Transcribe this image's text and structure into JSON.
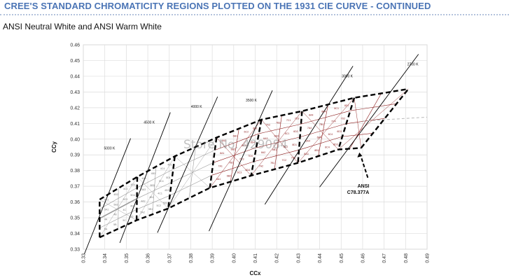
{
  "header": {
    "title": "CREE'S STANDARD CHROMATICITY REGIONS PLOTTED ON THE 1931 CIE CURVE - CONTINUED",
    "subtitle": "ANSI Neutral White and ANSI Warm White"
  },
  "watermark": "Store No. 429084",
  "colors": {
    "title": "#4a74b5",
    "neutral_bins": "#9a9a9a",
    "warm_bins": "#8b1a1a",
    "outline": "#000000"
  },
  "chart_data": {
    "type": "scatter",
    "title": "",
    "xlabel": "CCx",
    "ylabel": "CCy",
    "xlim": [
      0.33,
      0.49
    ],
    "ylim": [
      0.33,
      0.46
    ],
    "x_ticks": [
      "0.33",
      "0.34",
      "0.35",
      "0.36",
      "0.37",
      "0.38",
      "0.39",
      "0.40",
      "0.41",
      "0.42",
      "0.43",
      "0.44",
      "0.45",
      "0.46",
      "0.47",
      "0.48",
      "0.49"
    ],
    "y_ticks": [
      "0.33",
      "0.34",
      "0.35",
      "0.36",
      "0.37",
      "0.38",
      "0.39",
      "0.40",
      "0.41",
      "0.42",
      "0.43",
      "0.44",
      "0.45",
      "0.46"
    ],
    "grid": true,
    "ansi_regions": {
      "corners": [
        [
          0.3376,
          0.3616
        ],
        [
          0.3376,
          0.3375
        ],
        [
          0.4813,
          0.4319
        ],
        [
          0.4593,
          0.3944
        ]
      ],
      "lower_edge": [
        [
          0.3376,
          0.3375
        ],
        [
          0.3548,
          0.3484
        ],
        [
          0.3695,
          0.3559
        ],
        [
          0.3889,
          0.369
        ],
        [
          0.4081,
          0.3768
        ],
        [
          0.4299,
          0.3849
        ],
        [
          0.4487,
          0.3934
        ],
        [
          0.4593,
          0.3944
        ]
      ],
      "upper_edge": [
        [
          0.3376,
          0.3616
        ],
        [
          0.3551,
          0.376
        ],
        [
          0.3726,
          0.3891
        ],
        [
          0.392,
          0.401
        ],
        [
          0.4129,
          0.4124
        ],
        [
          0.4318,
          0.4178
        ],
        [
          0.4561,
          0.4263
        ],
        [
          0.4813,
          0.4319
        ]
      ],
      "separators": [
        [
          [
            0.3551,
            0.376
          ],
          [
            0.3548,
            0.3484
          ]
        ],
        [
          [
            0.3726,
            0.3891
          ],
          [
            0.3695,
            0.3559
          ]
        ],
        [
          [
            0.392,
            0.401
          ],
          [
            0.3889,
            0.369
          ]
        ],
        [
          [
            0.4129,
            0.4124
          ],
          [
            0.4081,
            0.3768
          ]
        ],
        [
          [
            0.4318,
            0.4178
          ],
          [
            0.4299,
            0.3849
          ]
        ],
        [
          [
            0.4561,
            0.4263
          ],
          [
            0.4487,
            0.3934
          ]
        ]
      ]
    },
    "isotherms": [
      {
        "label": "5000 K",
        "from": [
          0.3305,
          0.327
        ],
        "to": [
          0.352,
          0.4005
        ]
      },
      {
        "label": "4500 K",
        "from": [
          0.347,
          0.334
        ],
        "to": [
          0.3705,
          0.417
        ]
      },
      {
        "label": "4000 K",
        "from": [
          0.3645,
          0.3405
        ],
        "to": [
          0.3925,
          0.427
        ]
      },
      {
        "label": "3500 K",
        "from": [
          0.3885,
          0.3415
        ],
        "to": [
          0.418,
          0.431
        ]
      },
      {
        "label": "3000 K",
        "from": [
          0.4145,
          0.3585
        ],
        "to": [
          0.4555,
          0.4465
        ]
      },
      {
        "label": "2700 K",
        "from": [
          0.44,
          0.3695
        ],
        "to": [
          0.486,
          0.454
        ]
      }
    ],
    "planckian_segment": {
      "from": [
        0.46,
        0.4115
      ],
      "to": [
        0.49,
        0.414
      ]
    },
    "bin_labels_neutral": [
      "5A",
      "5B",
      "5C",
      "5D",
      "4A",
      "4B",
      "4C",
      "4D",
      "5A1",
      "5B2",
      "5C3",
      "5D4",
      "4A1",
      "4B2",
      "4C3",
      "4D4",
      "5A2",
      "5B1",
      "5C2",
      "5D3",
      "4A2",
      "4B1",
      "4C1",
      "4D2",
      "5A3",
      "5B3",
      "5C4",
      "5D1",
      "4A3",
      "4B3",
      "4C4",
      "4D1"
    ],
    "bin_labels_warm": [
      "6A1",
      "6B2",
      "6C3",
      "6D4",
      "7A1",
      "7B2",
      "7C3",
      "7D4",
      "8A1",
      "8B2",
      "8C3",
      "8D4",
      "6A2",
      "6B1",
      "6C2",
      "6D1",
      "7A2",
      "7B1",
      "7C2",
      "7D1",
      "8A2",
      "8B1",
      "8C2",
      "8D1",
      "6A3",
      "6B3",
      "6C1",
      "6D2",
      "7A3",
      "7B3",
      "7C1",
      "7D3",
      "8A3",
      "8B3",
      "8C4",
      "8D3",
      "6A4",
      "6B4",
      "6C4",
      "6D3",
      "7A4",
      "7B4",
      "7C4",
      "7D2",
      "8A4",
      "8B4",
      "8C1",
      "8D2"
    ],
    "annotation": {
      "lines": [
        "ANSI",
        "C78.377A"
      ],
      "arrow_to": [
        0.4585,
        0.3915
      ]
    }
  }
}
